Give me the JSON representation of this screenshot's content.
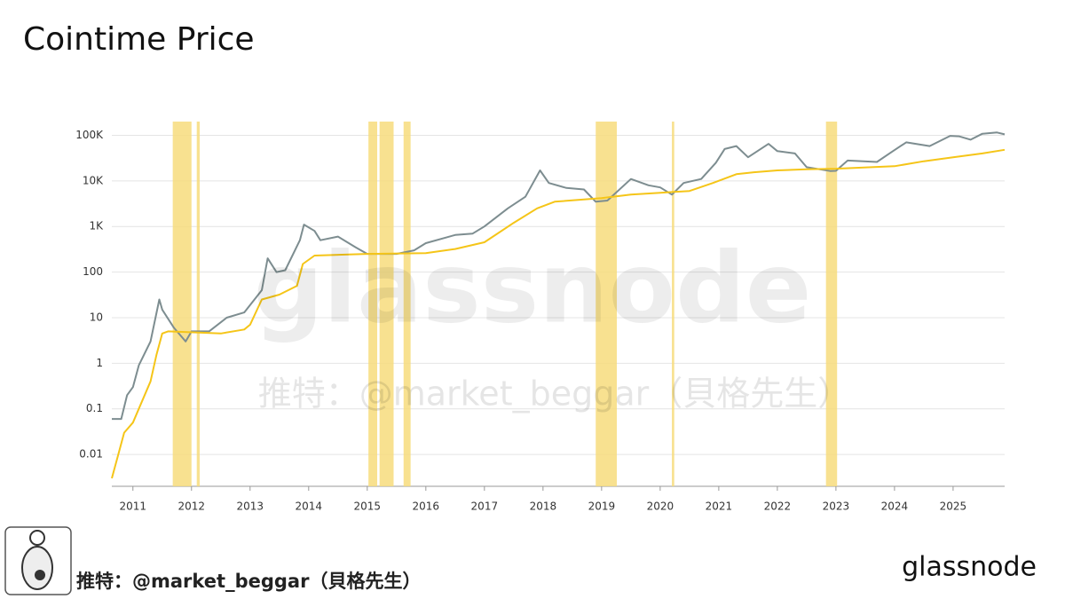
{
  "chart_data": {
    "type": "line",
    "title": "Cointime Price",
    "log_scale_y": true,
    "grid": true,
    "xlim": [
      2010.64,
      2025.88
    ],
    "xticks": [
      2011,
      2012,
      2013,
      2014,
      2015,
      2016,
      2017,
      2018,
      2019,
      2020,
      2021,
      2022,
      2023,
      2024,
      2025
    ],
    "ylim": [
      0.002,
      200000
    ],
    "yticks": [
      {
        "value": 100000,
        "label": "100K"
      },
      {
        "value": 10000,
        "label": "10K"
      },
      {
        "value": 1000,
        "label": "1K"
      },
      100,
      10,
      1,
      0.1,
      0.01
    ],
    "band_color": "#f7dc7c",
    "bands": [
      [
        2011.68,
        2012.0
      ],
      [
        2012.09,
        2012.14
      ],
      [
        2015.02,
        2015.17
      ],
      [
        2015.21,
        2015.45
      ],
      [
        2015.62,
        2015.74
      ],
      [
        2018.9,
        2019.26
      ],
      [
        2020.2,
        2020.24
      ],
      [
        2022.83,
        2023.02
      ]
    ],
    "series": [
      {
        "color": "#7d8d90",
        "x": [
          2010.64,
          2010.8,
          2010.9,
          2011.0,
          2011.1,
          2011.3,
          2011.45,
          2011.5,
          2011.7,
          2011.9,
          2012.0,
          2012.3,
          2012.6,
          2012.9,
          2013.2,
          2013.3,
          2013.45,
          2013.6,
          2013.85,
          2013.92,
          2014.1,
          2014.2,
          2014.5,
          2014.8,
          2015.0,
          2015.2,
          2015.5,
          2015.8,
          2016.0,
          2016.5,
          2016.8,
          2017.0,
          2017.4,
          2017.7,
          2017.95,
          2018.1,
          2018.4,
          2018.7,
          2018.9,
          2019.1,
          2019.5,
          2019.8,
          2020.0,
          2020.2,
          2020.4,
          2020.7,
          2020.95,
          2021.1,
          2021.3,
          2021.5,
          2021.85,
          2022.0,
          2022.3,
          2022.5,
          2022.9,
          2023.0,
          2023.2,
          2023.7,
          2023.95,
          2024.2,
          2024.6,
          2024.95,
          2025.1,
          2025.3,
          2025.5,
          2025.75,
          2025.88
        ],
        "values": [
          0.06,
          0.06,
          0.2,
          0.3,
          0.9,
          3,
          25,
          15,
          6,
          3,
          5,
          5,
          10,
          13,
          40,
          200,
          100,
          110,
          500,
          1100,
          800,
          500,
          600,
          350,
          250,
          250,
          250,
          300,
          430,
          650,
          700,
          1000,
          2500,
          4500,
          17000,
          9000,
          7000,
          6500,
          3500,
          3700,
          11000,
          8000,
          7200,
          5000,
          9000,
          11000,
          25000,
          50000,
          58000,
          33000,
          65000,
          45000,
          40000,
          20000,
          16500,
          16600,
          28000,
          26000,
          43000,
          70000,
          58000,
          97000,
          95000,
          80000,
          108000,
          115000,
          105000
        ]
      },
      {
        "color": "#f5c518",
        "x": [
          2010.64,
          2010.75,
          2010.85,
          2011.0,
          2011.1,
          2011.3,
          2011.4,
          2011.5,
          2011.6,
          2012.5,
          2012.9,
          2013.0,
          2013.2,
          2013.5,
          2013.8,
          2013.9,
          2014.1,
          2015.0,
          2016.0,
          2016.5,
          2017.0,
          2017.5,
          2017.9,
          2018.2,
          2019.0,
          2019.5,
          2020.0,
          2020.5,
          2020.9,
          2021.3,
          2021.6,
          2022.0,
          2022.5,
          2023.0,
          2024.0,
          2024.5,
          2025.0,
          2025.5,
          2025.88
        ],
        "values": [
          0.003,
          0.01,
          0.03,
          0.05,
          0.1,
          0.4,
          1.5,
          4.5,
          5,
          4.5,
          5.5,
          7,
          25,
          32,
          50,
          150,
          230,
          250,
          260,
          320,
          450,
          1200,
          2500,
          3500,
          4200,
          5000,
          5500,
          6000,
          9000,
          14000,
          15500,
          17000,
          18000,
          18500,
          21000,
          27000,
          33000,
          40000,
          48000
        ]
      }
    ]
  },
  "branding": {
    "watermark": "glassnode",
    "watermark_handle": "推特：@market_beggar（貝格先生）",
    "footer_handle": "推特：@market_beggar（貝格先生）",
    "footer_logo": "glassnode"
  }
}
